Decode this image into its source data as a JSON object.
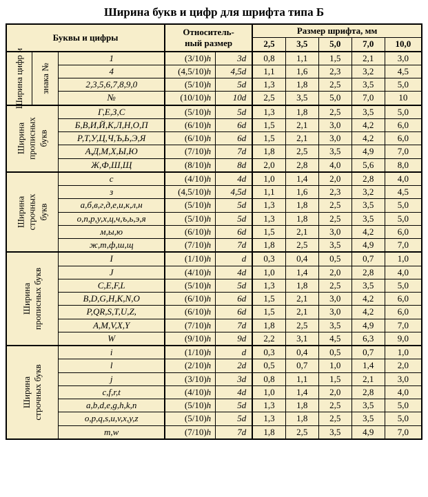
{
  "title": "Ширина букв и цифр для шрифта типа Б",
  "headers": {
    "letters_and_digits": "Буквы и цифры",
    "relative_size_line1": "Относитель-",
    "relative_size_line2": "ный размер",
    "font_size_mm": "Размер шрифта, мм",
    "sizes": [
      "2,5",
      "3,5",
      "5,0",
      "7,0",
      "10,0"
    ]
  },
  "sections": [
    {
      "label": "Ширина цифр и",
      "label2": "знака №",
      "rows": [
        {
          "chars": "1",
          "h": "(3/10)h",
          "d": "3d",
          "vals": [
            "0,8",
            "1,1",
            "1,5",
            "2,1",
            "3,0"
          ]
        },
        {
          "chars": "4",
          "h": "(4,5/10)h",
          "d": "4,5d",
          "vals": [
            "1,1",
            "1,6",
            "2,3",
            "3,2",
            "4,5"
          ]
        },
        {
          "chars": "2,3,5,6,7,8,9,0",
          "h": "(5/10)h",
          "d": "5d",
          "vals": [
            "1,3",
            "1,8",
            "2,5",
            "3,5",
            "5,0"
          ]
        },
        {
          "chars": "№",
          "h": "(10/10)h",
          "d": "10d",
          "vals": [
            "2,5",
            "3,5",
            "5,0",
            "7,0",
            "10"
          ]
        }
      ]
    },
    {
      "label": "Ширина",
      "label2": "прописных",
      "label3": "букв",
      "rows": [
        {
          "chars": "Г,Е,З,С",
          "h": "(5/10)h",
          "d": "5d",
          "vals": [
            "1,3",
            "1,8",
            "2,5",
            "3,5",
            "5,0"
          ]
        },
        {
          "chars": "Б,В,И,Й,К,Л,Н,О,П",
          "h": "(6/10)h",
          "d": "6d",
          "vals": [
            "1,5",
            "2,1",
            "3,0",
            "4,2",
            "6,0"
          ]
        },
        {
          "chars": "Р,Т,У,Ц,Ч,Ъ,Ь,Э,Я",
          "h": "(6/10)h",
          "d": "6d",
          "vals": [
            "1,5",
            "2,1",
            "3,0",
            "4,2",
            "6,0"
          ]
        },
        {
          "chars": "А,Д,М,Х,Ы,Ю",
          "h": "(7/10)h",
          "d": "7d",
          "vals": [
            "1,8",
            "2,5",
            "3,5",
            "4,9",
            "7,0"
          ]
        },
        {
          "chars": "Ж,Ф,Ш,Щ",
          "h": "(8/10)h",
          "d": "8d",
          "vals": [
            "2,0",
            "2,8",
            "4,0",
            "5,6",
            "8,0"
          ]
        }
      ]
    },
    {
      "label": "Ширина",
      "label2": "строчных",
      "label3": "букв",
      "rows": [
        {
          "chars": "с",
          "h": "(4/10)h",
          "d": "4d",
          "vals": [
            "1,0",
            "1,4",
            "2,0",
            "2,8",
            "4,0"
          ]
        },
        {
          "chars": "з",
          "h": "(4,5/10)h",
          "d": "4,5d",
          "vals": [
            "1,1",
            "1,6",
            "2,3",
            "3,2",
            "4,5"
          ]
        },
        {
          "chars": "а,б,в,г,д,е,и,к,л,н",
          "h": "(5/10)h",
          "d": "5d",
          "vals": [
            "1,3",
            "1,8",
            "2,5",
            "3,5",
            "5,0"
          ]
        },
        {
          "chars": "о,п,р,у,х,ц,ч,ъ,ь,э,я",
          "h": "(5/10)h",
          "d": "5d",
          "vals": [
            "1,3",
            "1,8",
            "2,5",
            "3,5",
            "5,0"
          ]
        },
        {
          "chars": "м,ы,ю",
          "h": "(6/10)h",
          "d": "6d",
          "vals": [
            "1,5",
            "2,1",
            "3,0",
            "4,2",
            "6,0"
          ]
        },
        {
          "chars": "ж,т,ф,ш,щ",
          "h": "(7/10)h",
          "d": "7d",
          "vals": [
            "1,8",
            "2,5",
            "3,5",
            "4,9",
            "7,0"
          ]
        }
      ]
    },
    {
      "label": "Ширина",
      "label2": "прописных букв",
      "rows": [
        {
          "chars": "I",
          "h": "(1/10)h",
          "d": "d",
          "vals": [
            "0,3",
            "0,4",
            "0,5",
            "0,7",
            "1,0"
          ]
        },
        {
          "chars": "J",
          "h": "(4/10)h",
          "d": "4d",
          "vals": [
            "1,0",
            "1,4",
            "2,0",
            "2,8",
            "4,0"
          ]
        },
        {
          "chars": "C,E,F,L",
          "h": "(5/10)h",
          "d": "5d",
          "vals": [
            "1,3",
            "1,8",
            "2,5",
            "3,5",
            "5,0"
          ]
        },
        {
          "chars": "B,D,G,H,K,N,O",
          "h": "(6/10)h",
          "d": "6d",
          "vals": [
            "1,5",
            "2,1",
            "3,0",
            "4,2",
            "6,0"
          ]
        },
        {
          "chars": "P,QR,S,T,U,Z,",
          "h": "(6/10)h",
          "d": "6d",
          "vals": [
            "1,5",
            "2,1",
            "3,0",
            "4,2",
            "6,0"
          ]
        },
        {
          "chars": "A,M,V,X,Y",
          "h": "(7/10)h",
          "d": "7d",
          "vals": [
            "1,8",
            "2,5",
            "3,5",
            "4,9",
            "7,0"
          ]
        },
        {
          "chars": "W",
          "h": "(9/10)h",
          "d": "9d",
          "vals": [
            "2,2",
            "3,1",
            "4,5",
            "6,3",
            "9,0"
          ]
        }
      ]
    },
    {
      "label": "Ширина",
      "label2": "строчных букв",
      "rows": [
        {
          "chars": "i",
          "h": "(1/10)h",
          "d": "d",
          "vals": [
            "0,3",
            "0,4",
            "0,5",
            "0,7",
            "1,0"
          ]
        },
        {
          "chars": "l",
          "h": "(2/10)h",
          "d": "2d",
          "vals": [
            "0,5",
            "0,7",
            "1,0",
            "1,4",
            "2,0"
          ]
        },
        {
          "chars": "j",
          "h": "(3/10)h",
          "d": "3d",
          "vals": [
            "0,8",
            "1,1",
            "1,5",
            "2,1",
            "3,0"
          ]
        },
        {
          "chars": "c,f,r,t",
          "h": "(4/10)h",
          "d": "4d",
          "vals": [
            "1,0",
            "1,4",
            "2,0",
            "2,8",
            "4,0"
          ]
        },
        {
          "chars": "a,b,d,e,g,h,k,n",
          "h": "(5/10)h",
          "d": "5d",
          "vals": [
            "1,3",
            "1,8",
            "2,5",
            "3,5",
            "5,0"
          ]
        },
        {
          "chars": "o,p,q,s,u,v,x,y,z",
          "h": "(5/10)h",
          "d": "5d",
          "vals": [
            "1,3",
            "1,8",
            "2,5",
            "3,5",
            "5,0"
          ]
        },
        {
          "chars": "m,w",
          "h": "(7/10)h",
          "d": "7d",
          "vals": [
            "1,8",
            "2,5",
            "3,5",
            "4,9",
            "7,0"
          ]
        }
      ]
    }
  ],
  "style": {
    "background": "#f7eecb",
    "border_color": "#000000",
    "font_family": "Times New Roman",
    "title_fontsize": 17,
    "body_fontsize": 13
  }
}
